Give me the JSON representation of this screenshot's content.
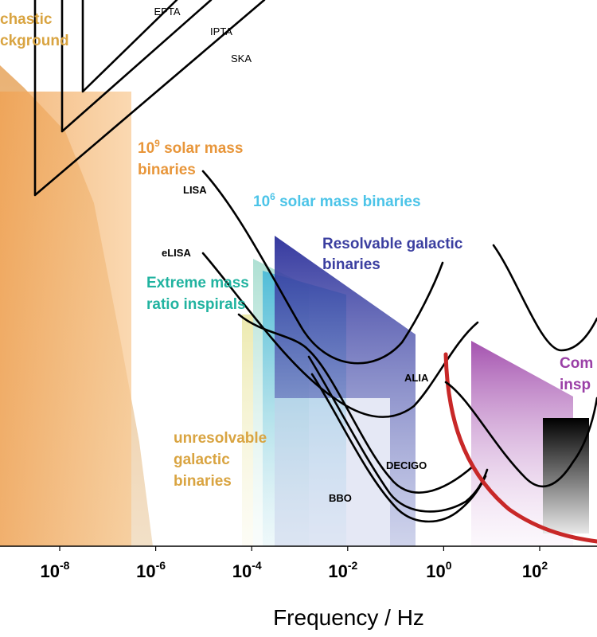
{
  "chart_data": {
    "type": "area",
    "xlabel": "Frequency / Hz",
    "x_scale": "log",
    "xlim": [
      1e-10,
      1000.0
    ],
    "x_ticks": [
      {
        "base": "10",
        "exp": "-8"
      },
      {
        "base": "10",
        "exp": "-6"
      },
      {
        "base": "10",
        "exp": "-4"
      },
      {
        "base": "10",
        "exp": "-2"
      },
      {
        "base": "10",
        "exp": "0"
      },
      {
        "base": "10",
        "exp": "2"
      }
    ],
    "detectors": [
      {
        "name": "EPTA",
        "min_frequency": 4e-09
      },
      {
        "name": "IPTA",
        "min_frequency": 1e-09
      },
      {
        "name": "SKA",
        "min_frequency": 2e-10
      },
      {
        "name": "LISA",
        "frequency_range": [
          1e-05,
          0.1
        ]
      },
      {
        "name": "eLISA",
        "frequency_range": [
          1e-05,
          1
        ]
      },
      {
        "name": "ALIA",
        "frequency_range": [
          0.001,
          1
        ]
      },
      {
        "name": "DECIGO",
        "frequency_range": [
          0.001,
          10
        ]
      },
      {
        "name": "BBO",
        "frequency_range": [
          0.001,
          10
        ]
      }
    ],
    "sources": [
      {
        "label": "chastic",
        "label2": "ckground",
        "color": "#d9a441",
        "frequency_range": [
          1e-10,
          3e-06
        ]
      },
      {
        "label": "10",
        "exp": "9",
        "label_after": " solar mass",
        "label2": "binaries",
        "color": "#e8963a",
        "frequency_range": [
          1e-10,
          3e-07
        ]
      },
      {
        "label": "10",
        "exp": "6",
        "label_after": " solar mass binaries",
        "color": "#4cc4e8",
        "frequency_range": [
          0.0001,
          0.1
        ]
      },
      {
        "label": "Resolvable galactic",
        "label2": "binaries",
        "color": "#3b3fa0",
        "frequency_range": [
          0.0002,
          0.2
        ]
      },
      {
        "label": "Extreme mass",
        "label2": "ratio inspirals",
        "color": "#21b3a0",
        "frequency_range": [
          0.0001,
          0.03
        ]
      },
      {
        "label": "unresolvable",
        "label2": "galactic",
        "label3": "binaries",
        "color": "#d9a441",
        "frequency_range": [
          5e-05,
          0.003
        ]
      },
      {
        "label": "Com",
        "label2": "insp",
        "color": "#9a3fa6",
        "frequency_range": [
          3,
          1000
        ]
      }
    ],
    "ground_detector_curve": {
      "color": "#c82828"
    },
    "grid": false,
    "legend": "none"
  }
}
